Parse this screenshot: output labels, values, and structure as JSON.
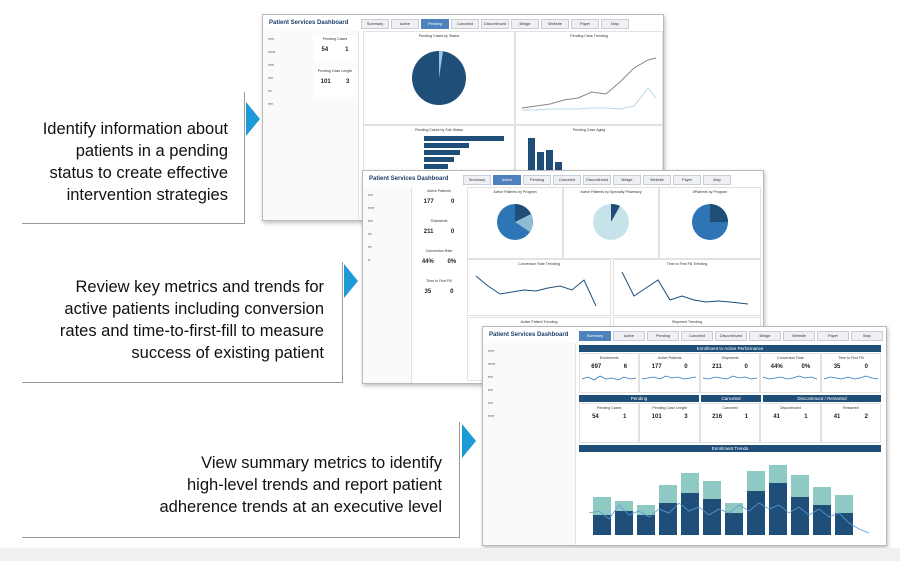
{
  "callouts": [
    {
      "lines": [
        "Identify information about",
        "patients in a pending",
        "status to create effective",
        "intervention strategies"
      ]
    },
    {
      "lines": [
        "Review key metrics and trends for",
        "active patients including conversion",
        "rates and time-to-first-fill to measure",
        "success of existing patient"
      ]
    },
    {
      "lines": [
        "View summary metrics to identify",
        "high-level trends and report patient",
        "adherence trends at an executive level"
      ]
    }
  ],
  "dashboard_title": "Patient Services Dashboard",
  "tabs": [
    "Summary",
    "Active",
    "Pending",
    "Canceled",
    "Discontinued",
    "Bridge",
    "Website",
    "Payer",
    "Map"
  ],
  "shot1": {
    "active_tab": "Pending",
    "kpis": [
      {
        "label": "Pending Cases",
        "total": "54",
        "new": "1"
      },
      {
        "label": "Pending Case Length",
        "total": "101",
        "new": "3"
      }
    ],
    "panels": [
      "Pending Cases by Status",
      "Pending Case Trending",
      "Pending Cases by Sub Status",
      "Pending Case Aging"
    ],
    "colors": {
      "primary": "#1f4e79",
      "secondary": "#8fbcd4",
      "accent": "#1e9ad6"
    }
  },
  "shot2": {
    "active_tab": "Active",
    "kpis": [
      {
        "label": "Active Patients",
        "total": "177",
        "new": "0"
      },
      {
        "label": "Shipments",
        "total": "211",
        "new": "0"
      },
      {
        "label": "Conversion Rate",
        "total": "44%",
        "new": "0%"
      },
      {
        "label": "Time to First Fill",
        "total": "35",
        "new": "0"
      }
    ],
    "panels": [
      "Active Patients by Program",
      "Active Patients by Specialty Pharmacy",
      "#Patients by Program",
      "Conversion Rate Trending",
      "Time to First Fill Trending",
      "Active Patient Trending",
      "Shipment Trending"
    ]
  },
  "shot3": {
    "active_tab": "Summary",
    "header_enroll": "Enrollment to Active Performance",
    "metrics_top": [
      {
        "label": "Enrollments",
        "total": "697",
        "new": "6"
      },
      {
        "label": "Active Patients",
        "total": "177",
        "new": "0"
      },
      {
        "label": "Shipments",
        "total": "211",
        "new": "0"
      },
      {
        "label": "Conversion Rate",
        "total": "44%",
        "new": "0%"
      },
      {
        "label": "Time to First Fill",
        "total": "35",
        "new": "0"
      }
    ],
    "section_headers": [
      "Pending",
      "Canceled",
      "Discontinued / Restarted"
    ],
    "metrics_bottom": [
      {
        "label": "Pending Cases",
        "total": "54",
        "new": "1"
      },
      {
        "label": "Pending Case Length",
        "total": "101",
        "new": "3"
      },
      {
        "label": "Canceled",
        "total": "216",
        "new": "1"
      },
      {
        "label": "Discontinued",
        "total": "41",
        "new": "1"
      },
      {
        "label": "Restarted",
        "total": "41",
        "new": "2"
      }
    ],
    "trend_title": "Enrollment Trends"
  }
}
